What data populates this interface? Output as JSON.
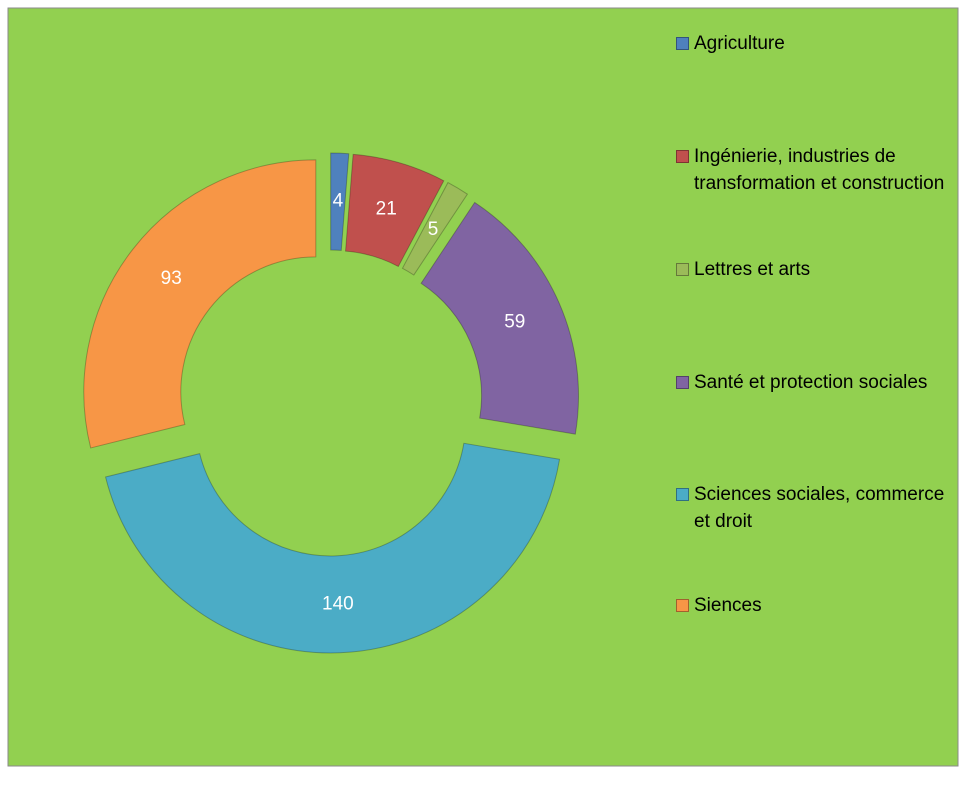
{
  "chart_data": {
    "type": "donut",
    "categories": [
      "Agriculture",
      "Ingénierie, industries de transformation et construction",
      "Lettres et arts",
      "Santé et protection sociales",
      "Sciences sociales, commerce et droit",
      "Siences"
    ],
    "values": [
      4,
      21,
      5,
      59,
      140,
      93
    ],
    "colors": [
      "#4f81bd",
      "#c0504d",
      "#9bbb59",
      "#8064a2",
      "#4bacc6",
      "#f79646"
    ],
    "legend": "right"
  }
}
